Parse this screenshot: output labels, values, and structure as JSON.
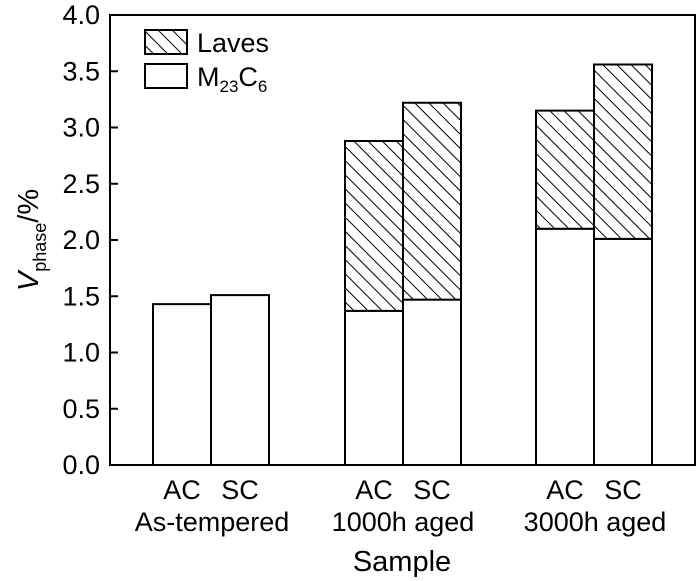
{
  "chart_data": {
    "type": "bar",
    "stacked": true,
    "title": "",
    "xlabel": "Sample",
    "ylabel": {
      "base": "V",
      "subscript": "phase",
      "suffix": "/%"
    },
    "ylim": [
      0,
      4.0
    ],
    "yticks": [
      "0.0",
      "0.5",
      "1.0",
      "1.5",
      "2.0",
      "2.5",
      "3.0",
      "3.5",
      "4.0"
    ],
    "grid": false,
    "legend_position": "top-left",
    "categories": [
      "AC",
      "SC",
      "AC",
      "SC",
      "AC",
      "SC"
    ],
    "groups": [
      "As-tempered",
      "1000h aged",
      "3000h aged"
    ],
    "series": [
      {
        "name": "M23C6",
        "label_main": "M",
        "label_sub1": "23",
        "label_mid": "C",
        "label_sub2": "6",
        "fill": "white",
        "values": [
          1.43,
          1.51,
          1.37,
          1.47,
          2.1,
          2.01
        ]
      },
      {
        "name": "Laves",
        "label": "Laves",
        "fill": "hatched",
        "values": [
          0,
          0,
          1.51,
          1.75,
          1.05,
          1.55
        ]
      }
    ]
  }
}
